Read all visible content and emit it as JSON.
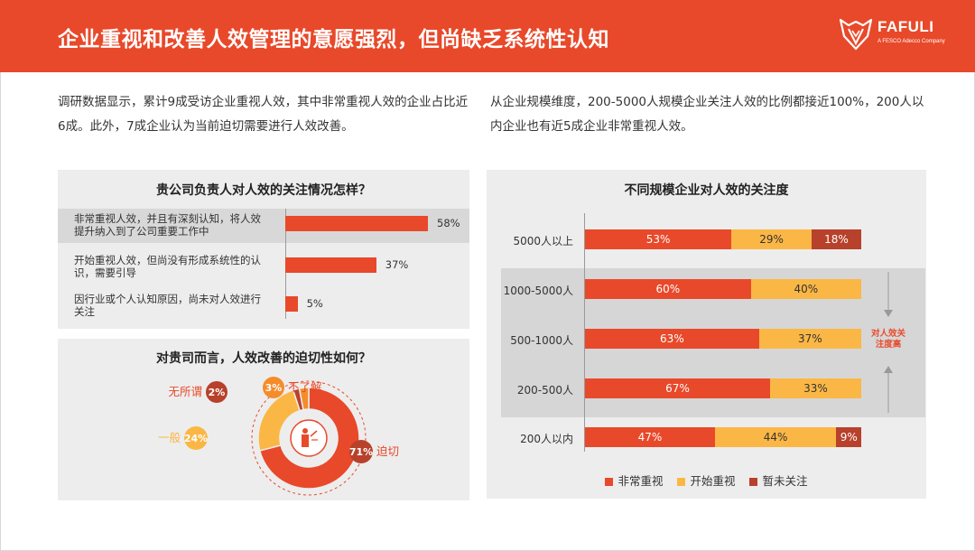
{
  "header": {
    "title": "企业重视和改善人效管理的意愿强烈，但尚缺乏系统性认知",
    "logo_text": "FAFULI",
    "logo_sub": "A FESCO Adecco Company"
  },
  "intro": {
    "left": "调研数据显示，累计9成受访企业重视人效，其中非常重视人效的企业占比近6成。此外，7成企业认为当前迫切需要进行人效改善。",
    "right": "从企业规模维度，200-5000人规模企业关注人效的比例都接近100%，200人以内企业也有近5成企业非常重视人效。"
  },
  "colors": {
    "accent": "#e8492a",
    "start": "#fbb745",
    "dark": "#b8412b",
    "orange": "#f58c2b"
  },
  "chart_data": [
    {
      "type": "bar",
      "orientation": "horizontal",
      "title": "贵公司负责人对人效的关注情况怎样？",
      "categories": [
        "非常重视人效，并且有深刻认知，将人效提升纳入到了公司重要工作中",
        "开始重视人效，但尚没有形成系统性的认识，需要引导",
        "因行业或个人认知原因，尚未对人效进行关注"
      ],
      "values": [
        58,
        37,
        5
      ],
      "value_labels": [
        "58%",
        "37%",
        "5%"
      ]
    },
    {
      "type": "pie",
      "title": "对贵司而言，人效改善的迫切性如何？",
      "categories": [
        "迫切",
        "一般",
        "无所谓",
        "不了解"
      ],
      "values": [
        71,
        24,
        2,
        3
      ],
      "value_labels": [
        "71%",
        "24%",
        "2%",
        "3%"
      ]
    },
    {
      "type": "bar",
      "stacked": true,
      "orientation": "horizontal",
      "title": "不同规模企业对人效的关注度",
      "categories": [
        "5000人以上",
        "1000-5000人",
        "500-1000人",
        "200-500人",
        "200人以内"
      ],
      "series": [
        {
          "name": "非常重视",
          "values": [
            53,
            60,
            63,
            67,
            47
          ],
          "labels": [
            "53%",
            "60%",
            "63%",
            "67%",
            "47%"
          ]
        },
        {
          "name": "开始重视",
          "values": [
            29,
            40,
            37,
            33,
            44
          ],
          "labels": [
            "29%",
            "40%",
            "37%",
            "33%",
            "44%"
          ]
        },
        {
          "name": "暂未关注",
          "values": [
            18,
            0,
            0,
            0,
            9
          ],
          "labels": [
            "18%",
            "",
            "",
            "",
            "9%"
          ]
        }
      ],
      "legend_position": "bottom",
      "annotation": "对人效关注度高"
    }
  ]
}
